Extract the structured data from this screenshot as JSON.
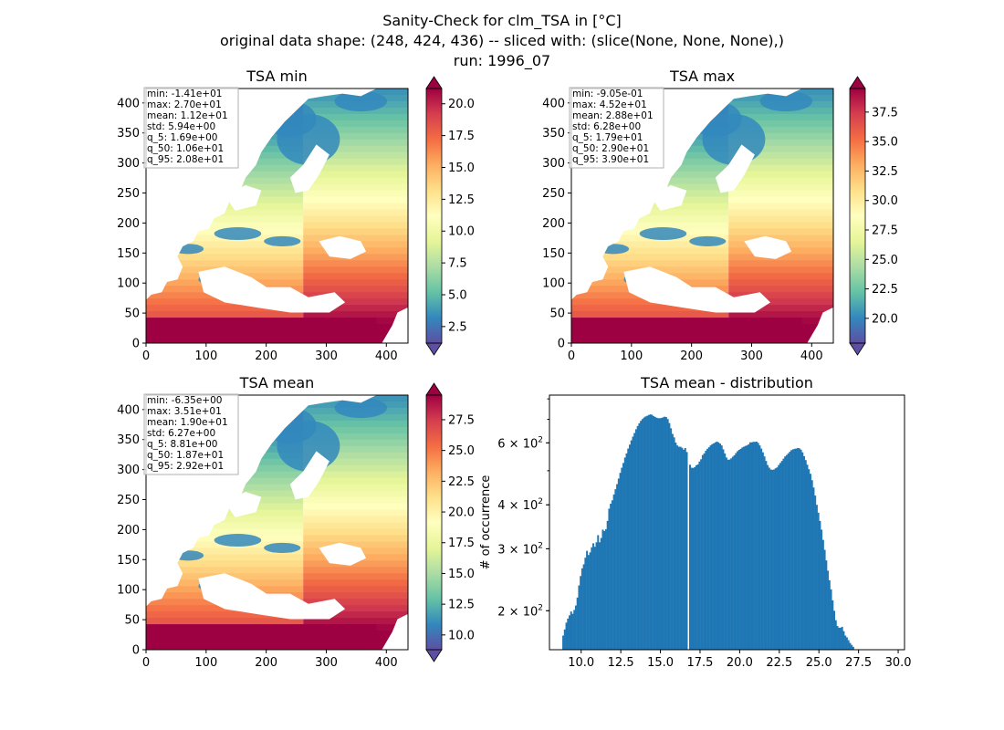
{
  "figure": {
    "suptitle_line1": "Sanity-Check for clm_TSA in [°C]",
    "suptitle_line2": "original data shape: (248, 424, 436) -- sliced with: (slice(None, None, None),)",
    "suptitle_line3": "run: 1996_07"
  },
  "colors": {
    "cmap_spectral_r": [
      "#5e4fa2",
      "#3288bd",
      "#66c2a5",
      "#abdda4",
      "#e6f598",
      "#ffffbf",
      "#fee08b",
      "#fdae61",
      "#f46d43",
      "#d53e4f",
      "#9e0142"
    ],
    "hist_bar": "#1f77b4",
    "stats_box_border": "#b0b0b0"
  },
  "chart_data": [
    {
      "type": "heatmap",
      "title": "TSA min",
      "x_ticks": [
        "0",
        "100",
        "200",
        "300",
        "400"
      ],
      "y_ticks": [
        "0",
        "50",
        "100",
        "150",
        "200",
        "250",
        "300",
        "350",
        "400"
      ],
      "xlim": [
        0,
        436
      ],
      "ylim": [
        0,
        424
      ],
      "colorbar": {
        "min": 1.2,
        "max": 21.2,
        "ticks": [
          "2.5",
          "5.0",
          "7.5",
          "10.0",
          "12.5",
          "15.0",
          "17.5",
          "20.0"
        ],
        "extend": "both"
      },
      "stats": [
        "min: -1.41e+01",
        "max: 2.70e+01",
        "mean: 1.12e+01",
        "std: 5.94e+00",
        "q_5: 1.69e+00",
        "q_50: 1.06e+01",
        "q_95: 2.08e+01"
      ]
    },
    {
      "type": "heatmap",
      "title": "TSA max",
      "x_ticks": [
        "0",
        "100",
        "200",
        "300",
        "400"
      ],
      "y_ticks": [
        "0",
        "50",
        "100",
        "150",
        "200",
        "250",
        "300",
        "350",
        "400"
      ],
      "xlim": [
        0,
        436
      ],
      "ylim": [
        0,
        424
      ],
      "colorbar": {
        "min": 17.9,
        "max": 39.5,
        "ticks": [
          "20.0",
          "22.5",
          "25.0",
          "27.5",
          "30.0",
          "32.5",
          "35.0",
          "37.5"
        ],
        "extend": "both"
      },
      "stats": [
        "min: -9.05e-01",
        "max: 4.52e+01",
        "mean: 2.88e+01",
        "std: 6.28e+00",
        "q_5: 1.79e+01",
        "q_50: 2.90e+01",
        "q_95: 3.90e+01"
      ]
    },
    {
      "type": "heatmap",
      "title": "TSA mean",
      "x_ticks": [
        "0",
        "100",
        "200",
        "300",
        "400"
      ],
      "y_ticks": [
        "0",
        "50",
        "100",
        "150",
        "200",
        "250",
        "300",
        "350",
        "400"
      ],
      "xlim": [
        0,
        436
      ],
      "ylim": [
        0,
        424
      ],
      "colorbar": {
        "min": 8.8,
        "max": 29.5,
        "ticks": [
          "10.0",
          "12.5",
          "15.0",
          "17.5",
          "20.0",
          "22.5",
          "25.0",
          "27.5"
        ],
        "extend": "both"
      },
      "stats": [
        "min: -6.35e+00",
        "max: 3.51e+01",
        "mean: 1.90e+01",
        "std: 6.27e+00",
        "q_5: 8.81e+00",
        "q_50: 1.87e+01",
        "q_95: 2.92e+01"
      ]
    },
    {
      "type": "bar",
      "title": "TSA mean - distribution",
      "ylabel": "# of occurrence",
      "y_scale": "log",
      "xlim": [
        8.0,
        30.4
      ],
      "ylim": [
        155,
        820
      ],
      "x_ticks": [
        "10.0",
        "12.5",
        "15.0",
        "17.5",
        "20.0",
        "22.5",
        "25.0",
        "27.5",
        "30.0"
      ],
      "y_ticks": [
        {
          "value": 200,
          "base": "2 × 10",
          "exp": "2"
        },
        {
          "value": 300,
          "base": "3 × 10",
          "exp": "2"
        },
        {
          "value": 400,
          "base": "4 × 10",
          "exp": "2"
        },
        {
          "value": 600,
          "base": "6 × 10",
          "exp": "2"
        }
      ],
      "bin_start": 8.81,
      "bin_width": 0.1,
      "gap_at": 16.7,
      "values": [
        170,
        177,
        185,
        190,
        194,
        199,
        196,
        201,
        207,
        218,
        236,
        251,
        264,
        271,
        283,
        296,
        288,
        293,
        303,
        311,
        304,
        313,
        328,
        313,
        322,
        340,
        337,
        341,
        360,
        390,
        403,
        412,
        428,
        443,
        458,
        475,
        493,
        510,
        526,
        545,
        560,
        578,
        593,
        610,
        625,
        640,
        656,
        670,
        682,
        693,
        701,
        708,
        713,
        716,
        720,
        723,
        721,
        715,
        711,
        707,
        705,
        705,
        706,
        709,
        712,
        710,
        701,
        683,
        660,
        636,
        622,
        601,
        590,
        585,
        585,
        581,
        574,
        580,
        565,
        555,
        520,
        510,
        509,
        512,
        518,
        521,
        531,
        539,
        554,
        560,
        570,
        577,
        583,
        590,
        595,
        598,
        602,
        605,
        602,
        597,
        590,
        575,
        560,
        545,
        537,
        538,
        542,
        548,
        553,
        561,
        568,
        573,
        577,
        582,
        585,
        588,
        590,
        594,
        602,
        602,
        604,
        604,
        605,
        600,
        590,
        578,
        564,
        549,
        533,
        519,
        510,
        504,
        503,
        504,
        508,
        511,
        519,
        526,
        533,
        541,
        549,
        554,
        560,
        566,
        572,
        575,
        577,
        578,
        580,
        579,
        574,
        564,
        550,
        536,
        520,
        505,
        490,
        470,
        448,
        425,
        400,
        380,
        360,
        340,
        318,
        298,
        278,
        260,
        244,
        230,
        214,
        200,
        188,
        181,
        179,
        179,
        180,
        175,
        170,
        168,
        165,
        162,
        160,
        158
      ]
    }
  ]
}
